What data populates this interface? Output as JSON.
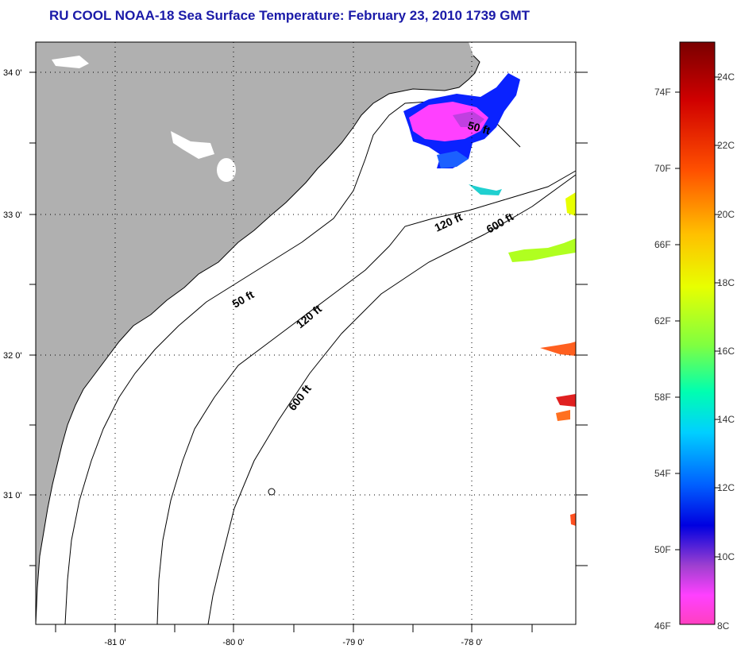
{
  "title": "RU COOL  NOAA-18  Sea Surface Temperature:  February 23, 2010 1739 GMT",
  "lat_labels": [
    "34 0'",
    "33 0'",
    "32 0'",
    "31 0'"
  ],
  "lon_labels": [
    "-81 0'",
    "-80 0'",
    "-79 0'",
    "-78 0'"
  ],
  "depth_contours": [
    {
      "label": "50 ft"
    },
    {
      "label": "120 ft"
    },
    {
      "label": "600 ft"
    },
    {
      "label": "50 ft"
    },
    {
      "label": "120 ft"
    },
    {
      "label": "600 ft"
    }
  ],
  "colorbar": {
    "fahrenheit": [
      "74F",
      "70F",
      "66F",
      "62F",
      "58F",
      "54F",
      "50F",
      "46F"
    ],
    "celsius": [
      "24C",
      "22C",
      "20C",
      "18C",
      "16C",
      "14C",
      "12C",
      "10C",
      "8C"
    ],
    "colors": [
      "#7a0000",
      "#c80000",
      "#ff4000",
      "#ff9000",
      "#ffe000",
      "#e8ff00",
      "#80ff00",
      "#00ff60",
      "#00ffd0",
      "#00b0ff",
      "#0040ff",
      "#0000d0",
      "#8030c0",
      "#ff40ff",
      "#ff30c0"
    ]
  },
  "colors": {
    "land": "#b0b0b0",
    "ocean": "#ffffff",
    "title": "#1a1aa8"
  }
}
